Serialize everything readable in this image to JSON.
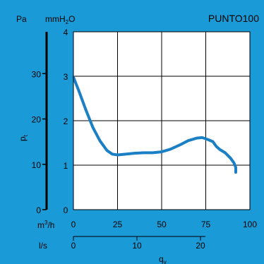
{
  "chart_data": {
    "type": "line",
    "title": "PUNTO100",
    "units": {
      "left_pa": "Pa",
      "left_mmh2o_main": "mmH",
      "left_mmh2o_sub": "2",
      "left_mmh2o_tail": "O",
      "ylabel_main": "p",
      "ylabel_sub": "t",
      "x_m3h_main": "m",
      "x_m3h_sup": "3",
      "x_m3h_tail": "/h",
      "x_ls": "l/s",
      "xlabel_main": "q",
      "xlabel_sub": "v"
    },
    "x_m3h": {
      "range": [
        0,
        100
      ],
      "ticks": [
        "0",
        "25",
        "50",
        "75",
        "100"
      ]
    },
    "x_ls": {
      "ticks": [
        "0",
        "10",
        "20"
      ]
    },
    "y_mmh2o": {
      "range": [
        0,
        4
      ],
      "ticks": [
        "0",
        "1",
        "2",
        "3",
        "4"
      ]
    },
    "y_pa": {
      "ticks": [
        "0",
        "10",
        "20",
        "30"
      ]
    },
    "grid": true,
    "series": [
      {
        "color": "#1a7fc4",
        "x": [
          0,
          3,
          7,
          11,
          15,
          19,
          22,
          25,
          30,
          35,
          40,
          45,
          50,
          55,
          60,
          65,
          70,
          73,
          76,
          79,
          81,
          83,
          86,
          89,
          91,
          92,
          92
        ],
        "y": [
          2.98,
          2.68,
          2.25,
          1.85,
          1.55,
          1.33,
          1.25,
          1.23,
          1.25,
          1.27,
          1.28,
          1.28,
          1.3,
          1.36,
          1.45,
          1.55,
          1.61,
          1.62,
          1.58,
          1.53,
          1.42,
          1.35,
          1.28,
          1.16,
          1.05,
          0.95,
          0.84
        ]
      }
    ]
  }
}
